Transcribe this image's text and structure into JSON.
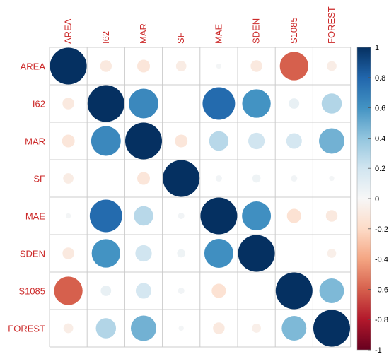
{
  "chart_data": {
    "type": "heatmap",
    "style": "correlation-circles",
    "variables": [
      "AREA",
      "I62",
      "MAR",
      "SF",
      "MAE",
      "SDEN",
      "S1085",
      "FOREST"
    ],
    "matrix": [
      [
        1.0,
        -0.1,
        -0.12,
        -0.08,
        0.02,
        -0.1,
        -0.6,
        -0.07
      ],
      [
        -0.1,
        1.0,
        0.65,
        0.0,
        0.78,
        0.6,
        0.08,
        0.3
      ],
      [
        -0.12,
        0.65,
        1.0,
        -0.12,
        0.28,
        0.2,
        0.18,
        0.48
      ],
      [
        -0.08,
        0.0,
        -0.12,
        1.0,
        0.03,
        0.05,
        0.03,
        0.02
      ],
      [
        0.02,
        0.78,
        0.28,
        0.03,
        1.0,
        0.62,
        -0.15,
        -0.1
      ],
      [
        -0.1,
        0.6,
        0.2,
        0.05,
        0.62,
        1.0,
        0.0,
        -0.06
      ],
      [
        -0.6,
        0.08,
        0.18,
        0.03,
        -0.15,
        0.0,
        1.0,
        0.45
      ],
      [
        -0.07,
        0.3,
        0.48,
        0.02,
        -0.1,
        -0.06,
        0.45,
        1.0
      ]
    ],
    "legend": {
      "position": "right",
      "range": [
        -1,
        1
      ],
      "ticks": [
        "1",
        "0.8",
        "0.6",
        "0.4",
        "0.2",
        "0",
        "-0.2",
        "-0.4",
        "-0.6",
        "-0.8",
        "-1"
      ]
    },
    "colors": {
      "positive_strong": "#053061",
      "positive_mid": "#4393c3",
      "neutral": "#f7f7f7",
      "negative_mid": "#f4a582",
      "negative_strong": "#67001f",
      "label": "#cc2a2a",
      "grid": "#cccccc"
    }
  }
}
